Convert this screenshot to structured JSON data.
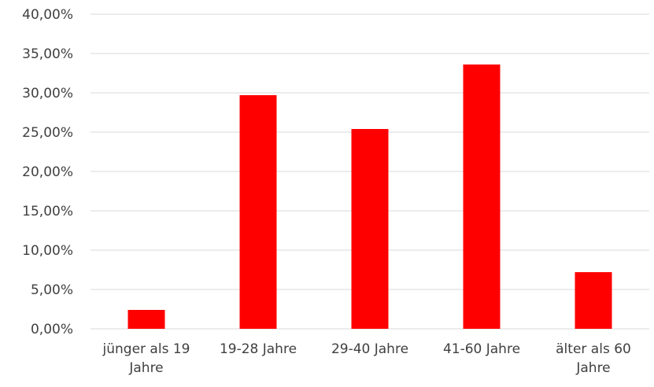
{
  "chart_data": {
    "type": "bar",
    "categories": [
      [
        "jünger als 19",
        "Jahre"
      ],
      [
        "19-28 Jahre"
      ],
      [
        "29-40 Jahre"
      ],
      [
        "41-60 Jahre"
      ],
      [
        "älter als 60",
        "Jahre"
      ]
    ],
    "values": [
      2.4,
      29.7,
      25.4,
      33.6,
      7.2
    ],
    "ylim": [
      0,
      40
    ],
    "yticks": [
      "0,00%",
      "5,00%",
      "10,00%",
      "15,00%",
      "20,00%",
      "25,00%",
      "30,00%",
      "35,00%",
      "40,00%"
    ],
    "bar_color": "#ff0000",
    "grid": true,
    "legend": false
  }
}
